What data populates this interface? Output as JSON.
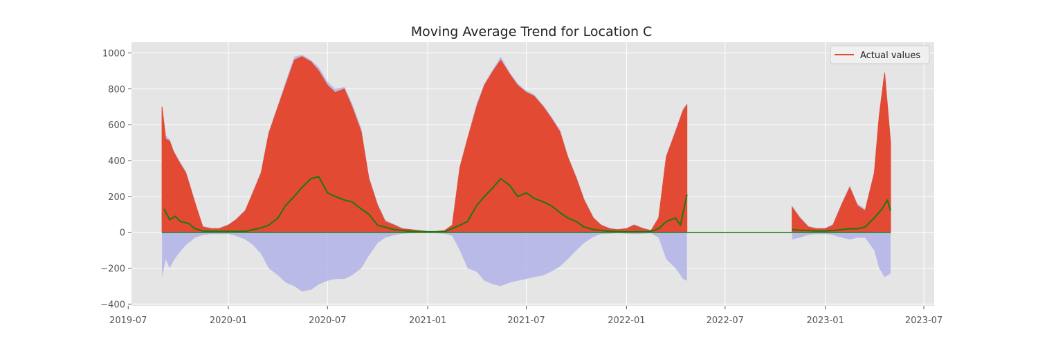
{
  "chart_data": {
    "type": "area",
    "title": "Moving Average Trend for Location C",
    "xlabel": "",
    "ylabel": "",
    "x_range": [
      "2019-07-07",
      "2023-07-20"
    ],
    "ylim": [
      -410,
      1060
    ],
    "x_ticks": [
      {
        "date": "2019-07-01",
        "label": "2019-07"
      },
      {
        "date": "2020-01-01",
        "label": "2020-01"
      },
      {
        "date": "2020-07-01",
        "label": "2020-07"
      },
      {
        "date": "2021-01-01",
        "label": "2021-01"
      },
      {
        "date": "2021-07-01",
        "label": "2021-07"
      },
      {
        "date": "2022-01-01",
        "label": "2022-01"
      },
      {
        "date": "2022-07-01",
        "label": "2022-07"
      },
      {
        "date": "2023-01-01",
        "label": "2023-01"
      },
      {
        "date": "2023-07-01",
        "label": "2023-07"
      }
    ],
    "y_ticks": [
      1000,
      800,
      600,
      400,
      200,
      0,
      -200,
      -400
    ],
    "y_tick_labels": [
      "1000",
      "800",
      "600",
      "400",
      "200",
      "0",
      "−200",
      "−400"
    ],
    "grid": true,
    "legend_position": "top-right",
    "colors": {
      "plot_background": "#e5e5e5",
      "grid": "#ffffff",
      "actual": "#e24a33",
      "band": "#b3b3ea",
      "moving_average": "#1a7a0a"
    },
    "series": [
      {
        "name": "Actual values",
        "style": "filled-area",
        "segments": [
          {
            "x": [
              "2019-09-01",
              "2019-09-08",
              "2019-09-15",
              "2019-09-22",
              "2019-10-01",
              "2019-10-15",
              "2019-11-01",
              "2019-11-15",
              "2019-12-01",
              "2019-12-15",
              "2020-01-01",
              "2020-01-15",
              "2020-02-01",
              "2020-02-15",
              "2020-03-01",
              "2020-03-15",
              "2020-04-01",
              "2020-04-15",
              "2020-05-01",
              "2020-05-15",
              "2020-06-01",
              "2020-06-15",
              "2020-07-01",
              "2020-07-15",
              "2020-08-01",
              "2020-08-15",
              "2020-09-01",
              "2020-09-15",
              "2020-10-01",
              "2020-10-15",
              "2020-11-01",
              "2020-11-15",
              "2020-12-01",
              "2020-12-15",
              "2021-01-01",
              "2021-01-15",
              "2021-02-01",
              "2021-02-15",
              "2021-03-01",
              "2021-03-15",
              "2021-04-01",
              "2021-04-15",
              "2021-05-01",
              "2021-05-15",
              "2021-06-01",
              "2021-06-15",
              "2021-07-01",
              "2021-07-15",
              "2021-08-01",
              "2021-08-15",
              "2021-09-01",
              "2021-09-15",
              "2021-10-01",
              "2021-10-15",
              "2021-11-01",
              "2021-11-15",
              "2021-12-01",
              "2021-12-15",
              "2022-01-01",
              "2022-01-15",
              "2022-02-01",
              "2022-02-15",
              "2022-03-01",
              "2022-03-15",
              "2022-04-01",
              "2022-04-15",
              "2022-04-22"
            ],
            "y": [
              700,
              520,
              510,
              450,
              400,
              330,
              160,
              30,
              20,
              20,
              40,
              70,
              120,
              220,
              330,
              550,
              700,
              820,
              960,
              980,
              950,
              900,
              820,
              780,
              800,
              700,
              560,
              300,
              150,
              60,
              40,
              20,
              15,
              10,
              5,
              5,
              10,
              40,
              360,
              520,
              700,
              820,
              900,
              960,
              880,
              820,
              780,
              760,
              700,
              640,
              560,
              420,
              300,
              180,
              80,
              40,
              20,
              15,
              20,
              40,
              20,
              10,
              80,
              420,
              560,
              680,
              710
            ]
          },
          {
            "x": [
              "2022-11-01",
              "2022-11-15",
              "2022-12-01",
              "2022-12-15",
              "2023-01-01",
              "2023-01-15",
              "2023-02-01",
              "2023-02-15",
              "2023-03-01",
              "2023-03-15",
              "2023-04-01",
              "2023-04-10",
              "2023-04-20",
              "2023-05-01"
            ],
            "y": [
              140,
              80,
              30,
              20,
              20,
              40,
              160,
              250,
              150,
              120,
              330,
              650,
              890,
              500
            ]
          }
        ]
      },
      {
        "name": "",
        "style": "shaded-band",
        "segments": [
          {
            "x": [
              "2019-09-01",
              "2019-09-08",
              "2019-09-15",
              "2019-09-22",
              "2019-10-01",
              "2019-10-15",
              "2019-11-01",
              "2019-11-15",
              "2019-12-01",
              "2019-12-15",
              "2020-01-01",
              "2020-01-15",
              "2020-02-01",
              "2020-02-15",
              "2020-03-01",
              "2020-03-15",
              "2020-04-01",
              "2020-04-15",
              "2020-05-01",
              "2020-05-15",
              "2020-06-01",
              "2020-06-15",
              "2020-07-01",
              "2020-07-15",
              "2020-08-01",
              "2020-08-15",
              "2020-09-01",
              "2020-09-15",
              "2020-10-01",
              "2020-10-15",
              "2020-11-01",
              "2020-11-15",
              "2020-12-01",
              "2020-12-15",
              "2021-01-01",
              "2021-01-15",
              "2021-02-01",
              "2021-02-15",
              "2021-03-01",
              "2021-03-15",
              "2021-04-01",
              "2021-04-15",
              "2021-05-01",
              "2021-05-15",
              "2021-06-01",
              "2021-06-15",
              "2021-07-01",
              "2021-07-15",
              "2021-08-01",
              "2021-08-15",
              "2021-09-01",
              "2021-09-15",
              "2021-10-01",
              "2021-10-15",
              "2021-11-01",
              "2021-11-15",
              "2021-12-01",
              "2021-12-15",
              "2022-01-01",
              "2022-01-15",
              "2022-02-01",
              "2022-02-15",
              "2022-03-01",
              "2022-03-15",
              "2022-04-01",
              "2022-04-15",
              "2022-04-22"
            ],
            "lower": [
              -250,
              -150,
              -200,
              -160,
              -120,
              -70,
              -30,
              -15,
              -10,
              -10,
              -10,
              -20,
              -40,
              -70,
              -120,
              -200,
              -240,
              -280,
              -300,
              -330,
              -320,
              -290,
              -270,
              -260,
              -260,
              -240,
              -200,
              -130,
              -60,
              -30,
              -15,
              -8,
              -5,
              -5,
              -5,
              -5,
              -8,
              -20,
              -100,
              -200,
              -220,
              -270,
              -290,
              -300,
              -280,
              -270,
              -260,
              -250,
              -240,
              -220,
              -190,
              -150,
              -100,
              -60,
              -25,
              -10,
              -8,
              -5,
              -8,
              -10,
              -8,
              -5,
              -30,
              -150,
              -200,
              -260,
              -270
            ],
            "upper": [
              710,
              540,
              520,
              460,
              410,
              340,
              170,
              35,
              25,
              25,
              45,
              75,
              125,
              230,
              340,
              560,
              710,
              840,
              980,
              990,
              960,
              920,
              840,
              800,
              810,
              720,
              580,
              310,
              160,
              70,
              45,
              25,
              18,
              12,
              8,
              8,
              12,
              45,
              370,
              530,
              720,
              830,
              910,
              980,
              890,
              830,
              790,
              770,
              710,
              650,
              570,
              430,
              310,
              190,
              85,
              45,
              25,
              18,
              25,
              45,
              25,
              12,
              85,
              430,
              570,
              690,
              720
            ]
          },
          {
            "x": [
              "2022-11-01",
              "2022-11-15",
              "2022-12-01",
              "2022-12-15",
              "2023-01-01",
              "2023-01-15",
              "2023-02-01",
              "2023-02-15",
              "2023-03-01",
              "2023-03-15",
              "2023-04-01",
              "2023-04-10",
              "2023-04-20",
              "2023-05-01"
            ],
            "lower": [
              -40,
              -30,
              -15,
              -10,
              -10,
              -15,
              -30,
              -40,
              -30,
              -30,
              -100,
              -200,
              -250,
              -230
            ],
            "upper": [
              150,
              90,
              35,
              25,
              25,
              45,
              170,
              260,
              160,
              130,
              340,
              660,
              900,
              510
            ]
          }
        ]
      },
      {
        "name": "",
        "style": "line",
        "segments": [
          {
            "x": [
              "2019-09-05",
              "2019-09-15",
              "2019-09-25",
              "2019-10-05",
              "2019-10-20",
              "2019-11-01",
              "2019-11-15",
              "2019-12-01",
              "2020-01-01",
              "2020-02-01",
              "2020-03-01",
              "2020-03-15",
              "2020-04-01",
              "2020-04-15",
              "2020-05-01",
              "2020-05-15",
              "2020-06-01",
              "2020-06-15",
              "2020-07-01",
              "2020-07-15",
              "2020-08-01",
              "2020-08-15",
              "2020-09-01",
              "2020-09-15",
              "2020-10-01",
              "2020-11-01",
              "2020-12-01",
              "2021-01-01",
              "2021-02-01",
              "2021-03-01",
              "2021-03-15",
              "2021-04-01",
              "2021-04-15",
              "2021-05-01",
              "2021-05-15",
              "2021-06-01",
              "2021-06-15",
              "2021-07-01",
              "2021-07-15",
              "2021-08-01",
              "2021-08-15",
              "2021-09-01",
              "2021-09-15",
              "2021-10-01",
              "2021-10-15",
              "2021-11-01",
              "2021-12-01",
              "2022-01-01",
              "2022-02-01",
              "2022-02-15",
              "2022-03-01",
              "2022-03-15",
              "2022-04-01",
              "2022-04-10",
              "2022-04-22"
            ],
            "y": [
              130,
              70,
              90,
              60,
              50,
              20,
              8,
              5,
              5,
              5,
              25,
              40,
              80,
              150,
              200,
              250,
              300,
              310,
              220,
              200,
              180,
              170,
              130,
              100,
              40,
              15,
              5,
              3,
              3,
              40,
              60,
              150,
              200,
              250,
              300,
              260,
              200,
              220,
              190,
              170,
              150,
              110,
              80,
              60,
              30,
              15,
              5,
              3,
              3,
              5,
              20,
              60,
              80,
              40,
              210
            ]
          },
          {
            "x": [
              "2022-11-01",
              "2022-11-15",
              "2022-12-01",
              "2022-12-15",
              "2023-01-01",
              "2023-01-15",
              "2023-02-01",
              "2023-02-15",
              "2023-03-01",
              "2023-03-15",
              "2023-04-01",
              "2023-04-15",
              "2023-04-25",
              "2023-05-01"
            ],
            "y": [
              15,
              12,
              10,
              8,
              8,
              10,
              15,
              20,
              20,
              30,
              80,
              130,
              180,
              120
            ]
          }
        ]
      }
    ]
  }
}
